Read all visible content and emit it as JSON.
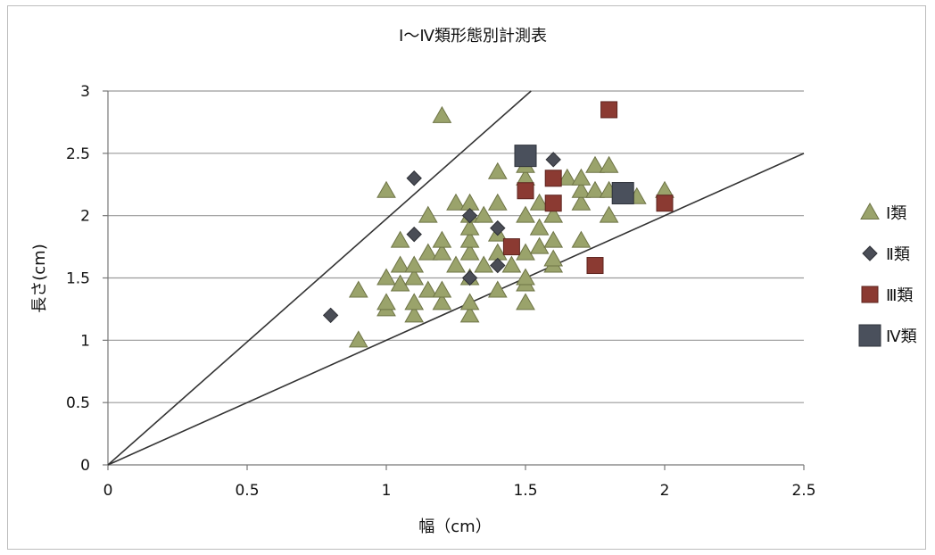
{
  "chart_data": {
    "type": "scatter",
    "title": "Ⅰ～Ⅳ類形態別計測表",
    "xlabel": "幅（cm）",
    "ylabel": "長さ(cm)",
    "xlim": [
      0,
      2.5
    ],
    "ylim": [
      0,
      3
    ],
    "x_ticks": [
      0,
      0.5,
      1,
      1.5,
      2,
      2.5
    ],
    "y_ticks": [
      0,
      0.5,
      1,
      1.5,
      2,
      2.5,
      3
    ],
    "x_tick_labels": [
      "0",
      "0.5",
      "1",
      "1.5",
      "2",
      "2.5"
    ],
    "y_tick_labels": [
      "0",
      "0.5",
      "1",
      "1.5",
      "2",
      "2.5",
      "3"
    ],
    "grid": "horizontal",
    "legend_position": "right",
    "series": [
      {
        "name": "Ⅰ類",
        "marker": "triangle",
        "color": "#9aa36b",
        "x": [
          0.9,
          0.9,
          1.0,
          1.0,
          1.0,
          1.0,
          1.05,
          1.05,
          1.05,
          1.1,
          1.1,
          1.1,
          1.1,
          1.15,
          1.15,
          1.15,
          1.2,
          1.2,
          1.2,
          1.2,
          1.25,
          1.25,
          1.3,
          1.3,
          1.3,
          1.3,
          1.3,
          1.3,
          1.3,
          1.3,
          1.35,
          1.35,
          1.4,
          1.4,
          1.4,
          1.4,
          1.4,
          1.45,
          1.5,
          1.5,
          1.5,
          1.5,
          1.5,
          1.5,
          1.5,
          1.55,
          1.55,
          1.55,
          1.6,
          1.6,
          1.6,
          1.6,
          1.65,
          1.7,
          1.7,
          1.7,
          1.7,
          1.75,
          1.75,
          1.8,
          1.8,
          1.8,
          1.9,
          2.0,
          1.2
        ],
        "y": [
          1.0,
          1.4,
          1.25,
          1.3,
          1.5,
          2.2,
          1.8,
          1.45,
          1.6,
          1.2,
          1.3,
          1.5,
          1.6,
          1.4,
          1.7,
          2.0,
          1.3,
          1.4,
          1.7,
          1.8,
          1.6,
          2.1,
          1.2,
          1.3,
          1.5,
          1.7,
          1.8,
          1.9,
          2.0,
          2.1,
          1.6,
          2.0,
          1.4,
          1.7,
          1.85,
          2.1,
          2.35,
          1.6,
          1.3,
          1.45,
          1.5,
          1.7,
          2.0,
          2.3,
          2.4,
          1.75,
          1.9,
          2.1,
          1.6,
          1.65,
          1.8,
          2.0,
          2.3,
          1.8,
          2.1,
          2.2,
          2.3,
          2.2,
          2.4,
          2.0,
          2.2,
          2.4,
          2.15,
          2.2,
          2.8
        ]
      },
      {
        "name": "Ⅱ類",
        "marker": "diamond",
        "color": "#4a4d56",
        "x": [
          0.8,
          1.1,
          1.1,
          1.3,
          1.3,
          1.4,
          1.4,
          1.6
        ],
        "y": [
          1.2,
          1.85,
          2.3,
          1.5,
          2.0,
          1.6,
          1.9,
          2.45
        ]
      },
      {
        "name": "Ⅲ類",
        "marker": "square",
        "color": "#8b3a32",
        "x": [
          1.45,
          1.5,
          1.6,
          1.6,
          1.75,
          1.8,
          2.0
        ],
        "y": [
          1.75,
          2.2,
          2.1,
          2.3,
          1.6,
          2.85,
          2.1
        ]
      },
      {
        "name": "Ⅳ類",
        "marker": "square-large",
        "color": "#4a505c",
        "x": [
          1.5,
          1.85
        ],
        "y": [
          2.48,
          2.18
        ]
      }
    ],
    "reference_lines": [
      {
        "x": [
          0,
          1.52
        ],
        "y": [
          0,
          3.0
        ]
      },
      {
        "x": [
          0,
          2.5
        ],
        "y": [
          0,
          2.5
        ]
      }
    ]
  }
}
